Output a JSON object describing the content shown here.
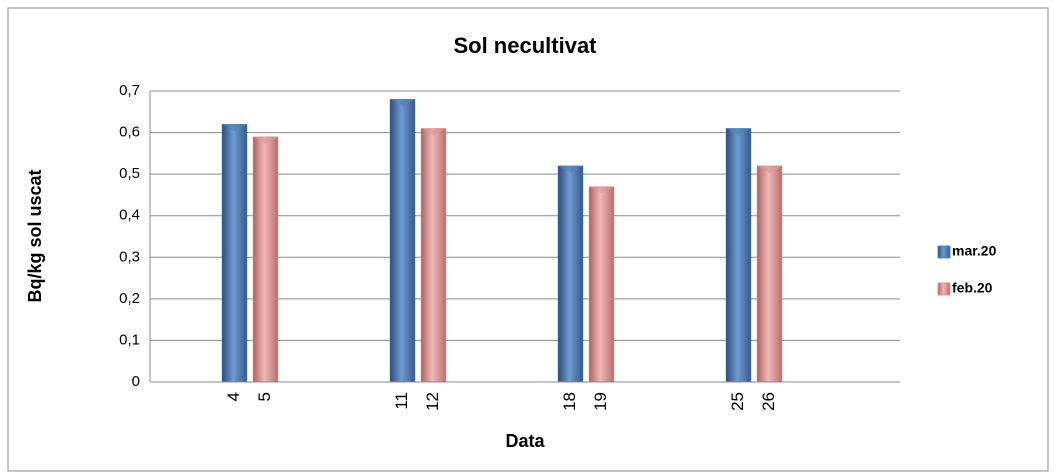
{
  "chart_data": {
    "type": "bar",
    "title": "Sol necultivat",
    "x_label": "Data",
    "y_label": "Bq/kg sol uscat",
    "series": [
      {
        "name": "mar.20",
        "color": "#4f81bd",
        "labels": [
          "4",
          "11",
          "18",
          "25"
        ],
        "values": [
          0.62,
          0.68,
          0.52,
          0.61
        ]
      },
      {
        "name": "feb.20",
        "color": "#d99795",
        "labels": [
          "5",
          "12",
          "19",
          "26"
        ],
        "values": [
          0.59,
          0.61,
          0.47,
          0.52
        ]
      }
    ],
    "ylim": [
      0,
      0.7
    ],
    "yticks": [
      0,
      {
        "value": 0.1,
        "label": "0,1"
      },
      {
        "value": 0.2,
        "label": "0,2"
      },
      {
        "value": 0.3,
        "label": "0,3"
      },
      {
        "value": 0.4,
        "label": "0,4"
      },
      {
        "value": 0.5,
        "label": "0,5"
      },
      {
        "value": 0.6,
        "label": "0,6"
      },
      {
        "value": 0.7,
        "label": "0,7"
      }
    ],
    "grid": true,
    "legend": "right"
  }
}
